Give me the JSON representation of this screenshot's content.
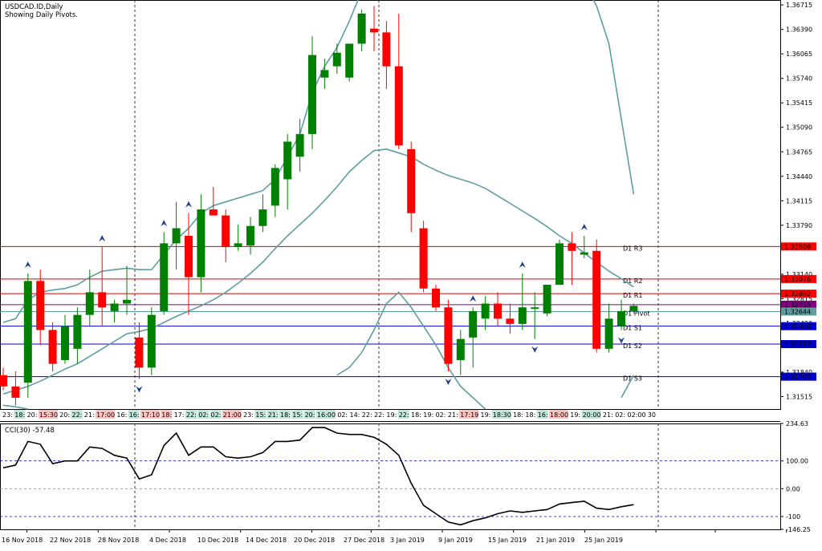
{
  "header": {
    "symbol": "USDCAD.ID,Daily",
    "subtitle": "Showing Daily Pivots."
  },
  "indicator": {
    "label": "CCI(30) -57.48",
    "levels": [
      {
        "label": "234.63",
        "value": 234.63
      },
      {
        "label": "100.00",
        "value": 100
      },
      {
        "label": "0.00",
        "value": 0
      },
      {
        "label": "-100",
        "value": -100
      },
      {
        "label": "-146.25",
        "value": -146.25
      }
    ]
  },
  "colors": {
    "bull": "#008000",
    "bear": "#ff0000",
    "band": "#5f9ea0",
    "resistance": "#dc0000",
    "support": "#0000cd",
    "pivot": "#5f9ea0",
    "cci": "#000000"
  },
  "chart_data": {
    "type": "candlestick",
    "ylim": [
      1.3135,
      1.3678
    ],
    "price_axis_labels": [
      "1.36715",
      "1.36390",
      "1.36065",
      "1.35740",
      "1.35415",
      "1.35090",
      "1.34765",
      "1.34440",
      "1.34115",
      "1.33790",
      "1.33140",
      "1.32815",
      "1.32490",
      "1.31840",
      "1.31515"
    ],
    "x_labels": [
      "16 Nov 2018",
      "22 Nov 2018",
      "28 Nov 2018",
      "4 Dec 2018",
      "10 Dec 2018",
      "14 Dec 2018",
      "20 Dec 2018",
      "27 Dec 2018",
      "3 Jan 2019",
      "9 Jan 2019",
      "15 Jan 2019",
      "21 Jan 2019",
      "25 Jan 2019"
    ],
    "candles": [
      {
        "o": 1.318,
        "h": 1.319,
        "l": 1.316,
        "c": 1.3165
      },
      {
        "o": 1.3165,
        "h": 1.3185,
        "l": 1.314,
        "c": 1.315
      },
      {
        "o": 1.317,
        "h": 1.3315,
        "l": 1.315,
        "c": 1.3305
      },
      {
        "o": 1.3305,
        "h": 1.332,
        "l": 1.322,
        "c": 1.324
      },
      {
        "o": 1.324,
        "h": 1.325,
        "l": 1.3185,
        "c": 1.3195
      },
      {
        "o": 1.32,
        "h": 1.326,
        "l": 1.3195,
        "c": 1.3245
      },
      {
        "o": 1.3215,
        "h": 1.327,
        "l": 1.3195,
        "c": 1.326
      },
      {
        "o": 1.326,
        "h": 1.332,
        "l": 1.3245,
        "c": 1.329
      },
      {
        "o": 1.329,
        "h": 1.335,
        "l": 1.3245,
        "c": 1.327
      },
      {
        "o": 1.3265,
        "h": 1.328,
        "l": 1.325,
        "c": 1.3275
      },
      {
        "o": 1.3275,
        "h": 1.3325,
        "l": 1.326,
        "c": 1.328
      },
      {
        "o": 1.323,
        "h": 1.325,
        "l": 1.3175,
        "c": 1.319
      },
      {
        "o": 1.319,
        "h": 1.327,
        "l": 1.318,
        "c": 1.326
      },
      {
        "o": 1.3265,
        "h": 1.337,
        "l": 1.326,
        "c": 1.3355
      },
      {
        "o": 1.3355,
        "h": 1.341,
        "l": 1.332,
        "c": 1.3375
      },
      {
        "o": 1.3365,
        "h": 1.3395,
        "l": 1.326,
        "c": 1.331
      },
      {
        "o": 1.331,
        "h": 1.342,
        "l": 1.329,
        "c": 1.34
      },
      {
        "o": 1.34,
        "h": 1.343,
        "l": 1.3395,
        "c": 1.3392
      },
      {
        "o": 1.3392,
        "h": 1.34,
        "l": 1.333,
        "c": 1.335
      },
      {
        "o": 1.335,
        "h": 1.338,
        "l": 1.3345,
        "c": 1.3355
      },
      {
        "o": 1.3352,
        "h": 1.339,
        "l": 1.334,
        "c": 1.3378
      },
      {
        "o": 1.3378,
        "h": 1.342,
        "l": 1.337,
        "c": 1.34
      },
      {
        "o": 1.3405,
        "h": 1.346,
        "l": 1.339,
        "c": 1.3455
      },
      {
        "o": 1.344,
        "h": 1.35,
        "l": 1.34,
        "c": 1.349
      },
      {
        "o": 1.347,
        "h": 1.352,
        "l": 1.345,
        "c": 1.35
      },
      {
        "o": 1.35,
        "h": 1.363,
        "l": 1.348,
        "c": 1.3605
      },
      {
        "o": 1.3575,
        "h": 1.36,
        "l": 1.356,
        "c": 1.3585
      },
      {
        "o": 1.359,
        "h": 1.362,
        "l": 1.358,
        "c": 1.3608
      },
      {
        "o": 1.3575,
        "h": 1.362,
        "l": 1.357,
        "c": 1.362
      },
      {
        "o": 1.362,
        "h": 1.3665,
        "l": 1.361,
        "c": 1.366
      },
      {
        "o": 1.364,
        "h": 1.367,
        "l": 1.361,
        "c": 1.3635
      },
      {
        "o": 1.3635,
        "h": 1.365,
        "l": 1.356,
        "c": 1.359
      },
      {
        "o": 1.359,
        "h": 1.366,
        "l": 1.348,
        "c": 1.3485
      },
      {
        "o": 1.348,
        "h": 1.349,
        "l": 1.337,
        "c": 1.3395
      },
      {
        "o": 1.3375,
        "h": 1.3385,
        "l": 1.329,
        "c": 1.3295
      },
      {
        "o": 1.3295,
        "h": 1.33,
        "l": 1.3265,
        "c": 1.327
      },
      {
        "o": 1.327,
        "h": 1.328,
        "l": 1.3185,
        "c": 1.3195
      },
      {
        "o": 1.32,
        "h": 1.324,
        "l": 1.318,
        "c": 1.3228
      },
      {
        "o": 1.323,
        "h": 1.327,
        "l": 1.319,
        "c": 1.3265
      },
      {
        "o": 1.3255,
        "h": 1.3285,
        "l": 1.324,
        "c": 1.3275
      },
      {
        "o": 1.3275,
        "h": 1.329,
        "l": 1.3245,
        "c": 1.3255
      },
      {
        "o": 1.3255,
        "h": 1.3275,
        "l": 1.3235,
        "c": 1.3248
      },
      {
        "o": 1.3248,
        "h": 1.3315,
        "l": 1.324,
        "c": 1.327
      },
      {
        "o": 1.3268,
        "h": 1.329,
        "l": 1.3228,
        "c": 1.327
      },
      {
        "o": 1.3262,
        "h": 1.33,
        "l": 1.3258,
        "c": 1.33
      },
      {
        "o": 1.33,
        "h": 1.336,
        "l": 1.33,
        "c": 1.3355
      },
      {
        "o": 1.3355,
        "h": 1.337,
        "l": 1.33,
        "c": 1.3345
      },
      {
        "o": 1.334,
        "h": 1.3365,
        "l": 1.3335,
        "c": 1.3343
      },
      {
        "o": 1.3345,
        "h": 1.336,
        "l": 1.321,
        "c": 1.3215
      },
      {
        "o": 1.3215,
        "h": 1.3275,
        "l": 1.321,
        "c": 1.3255
      },
      {
        "o": 1.3245,
        "h": 1.328,
        "l": 1.324,
        "c": 1.3265
      },
      {
        "o": 1.3265,
        "h": 1.3275,
        "l": 1.3262,
        "c": 1.3272
      }
    ],
    "bollinger_upper": [
      1.325,
      1.3255,
      1.328,
      1.329,
      1.3293,
      1.3295,
      1.33,
      1.331,
      1.3318,
      1.332,
      1.3322,
      1.332,
      1.332,
      1.334,
      1.336,
      1.3375,
      1.3395,
      1.3405,
      1.341,
      1.3415,
      1.342,
      1.3425,
      1.344,
      1.347,
      1.35,
      1.3555,
      1.359,
      1.3615,
      1.365,
      1.369,
      1.372,
      null,
      null,
      null,
      null,
      null,
      null,
      null,
      null,
      null,
      null,
      null,
      null,
      null,
      null,
      null,
      null,
      1.37,
      1.367,
      1.362,
      1.352,
      1.342
    ],
    "bollinger_mid": [
      1.3155,
      1.316,
      1.3165,
      1.3172,
      1.318,
      1.3188,
      1.3195,
      1.3205,
      1.3215,
      1.3225,
      1.3235,
      1.3238,
      1.3242,
      1.325,
      1.3258,
      1.3265,
      1.3272,
      1.328,
      1.329,
      1.3302,
      1.3315,
      1.333,
      1.3348,
      1.3365,
      1.338,
      1.3395,
      1.3412,
      1.343,
      1.345,
      1.3465,
      1.3478,
      1.348,
      1.3475,
      1.347,
      1.346,
      1.3452,
      1.3445,
      1.344,
      1.3435,
      1.3428,
      1.3418,
      1.3408,
      1.3398,
      1.3388,
      1.3377,
      1.3365,
      1.3355,
      1.3342,
      1.333,
      1.3318,
      1.3308,
      1.3297
    ],
    "bollinger_lower": [
      1.314,
      1.3138,
      1.3135,
      null,
      null,
      null,
      null,
      null,
      null,
      null,
      null,
      null,
      null,
      null,
      null,
      null,
      null,
      null,
      null,
      null,
      null,
      null,
      null,
      null,
      null,
      null,
      null,
      1.318,
      1.319,
      1.321,
      1.324,
      1.3275,
      1.329,
      1.327,
      1.3245,
      1.322,
      1.319,
      1.3165,
      1.315,
      1.3135,
      null,
      null,
      null,
      null,
      null,
      null,
      null,
      null,
      null,
      null,
      1.315,
      1.318
    ],
    "pivots": [
      {
        "name": "D1 R3",
        "label": "1.33508",
        "value": 1.33508,
        "kind": "resistance"
      },
      {
        "name": "D1 R2",
        "label": "1.33076",
        "value": 1.33076,
        "kind": "resistance"
      },
      {
        "name": "D1 R1",
        "label": "1.32882",
        "value": 1.32882,
        "kind": "resistance"
      },
      {
        "name": "",
        "label": "1.32735",
        "value": 1.32735,
        "kind": "current"
      },
      {
        "name": "D1 Pivot",
        "label": "1.32644",
        "value": 1.32644,
        "kind": "pivot"
      },
      {
        "name": "D1 S1",
        "label": "1.32450",
        "value": 1.3245,
        "kind": "support"
      },
      {
        "name": "D1 S2",
        "label": "1.32212",
        "value": 1.32212,
        "kind": "support"
      },
      {
        "name": "D1 S3",
        "label": "1.31780",
        "value": 1.3178,
        "kind": "support"
      }
    ],
    "fractals_up": [
      2,
      8,
      13,
      15,
      30,
      38,
      42,
      47
    ],
    "fractals_down": [
      11,
      36,
      43,
      50
    ],
    "cci": [
      75,
      85,
      170,
      160,
      90,
      100,
      100,
      150,
      145,
      120,
      110,
      35,
      50,
      155,
      200,
      120,
      150,
      150,
      115,
      110,
      115,
      130,
      170,
      170,
      175,
      220,
      220,
      200,
      195,
      195,
      185,
      160,
      120,
      20,
      -60,
      -90,
      -120,
      -130,
      -115,
      -105,
      -90,
      -80,
      -85,
      -80,
      -75,
      -55,
      -50,
      -45,
      -70,
      -75,
      -65,
      -57.48
    ],
    "cci_ylim": [
      -146.25,
      234.63
    ],
    "time_strip": [
      {
        "t": "23:",
        "hl": false
      },
      {
        "t": "18:",
        "hl": true
      },
      {
        "t": "20:",
        "hl": false
      },
      {
        "t": "15:30",
        "hl": "bear"
      },
      {
        "t": "20:",
        "hl": false
      },
      {
        "t": "22:",
        "hl": true
      },
      {
        "t": "21:",
        "hl": false
      },
      {
        "t": "17:00",
        "hl": "bear"
      },
      {
        "t": "16:",
        "hl": false
      },
      {
        "t": "16:",
        "hl": true
      },
      {
        "t": "17:10",
        "hl": "bear"
      },
      {
        "t": "18:",
        "hl": "bear"
      },
      {
        "t": "17:",
        "hl": false
      },
      {
        "t": "22:",
        "hl": true
      },
      {
        "t": "02:",
        "hl": true
      },
      {
        "t": "02:",
        "hl": true
      },
      {
        "t": "21:00",
        "hl": "bear"
      },
      {
        "t": "23:",
        "hl": false
      },
      {
        "t": "15:",
        "hl": true
      },
      {
        "t": "21:",
        "hl": true
      },
      {
        "t": "18:",
        "hl": true
      },
      {
        "t": "15:",
        "hl": true
      },
      {
        "t": "20:",
        "hl": true
      },
      {
        "t": "16:00",
        "hl": true
      },
      {
        "t": "02:",
        "hl": false
      },
      {
        "t": "14:",
        "hl": false
      },
      {
        "t": "22:",
        "hl": false
      },
      {
        "t": "22:",
        "hl": false
      },
      {
        "t": "19:",
        "hl": false
      },
      {
        "t": "22:",
        "hl": true
      },
      {
        "t": "18:",
        "hl": false
      },
      {
        "t": "19:",
        "hl": false
      },
      {
        "t": "02:",
        "hl": false
      },
      {
        "t": "21:",
        "hl": false
      },
      {
        "t": "17:19",
        "hl": "bear"
      },
      {
        "t": "19:",
        "hl": false
      },
      {
        "t": "18:30",
        "hl": true
      },
      {
        "t": "18:",
        "hl": false
      },
      {
        "t": "18:",
        "hl": false
      },
      {
        "t": "16:",
        "hl": true
      },
      {
        "t": "18:00",
        "hl": "bear"
      },
      {
        "t": "19:",
        "hl": false
      },
      {
        "t": "20:00",
        "hl": true
      },
      {
        "t": "21:",
        "hl": false
      },
      {
        "t": "02:",
        "hl": false
      },
      {
        "t": "02:00",
        "hl": false
      },
      {
        "t": "30",
        "hl": false
      }
    ]
  }
}
